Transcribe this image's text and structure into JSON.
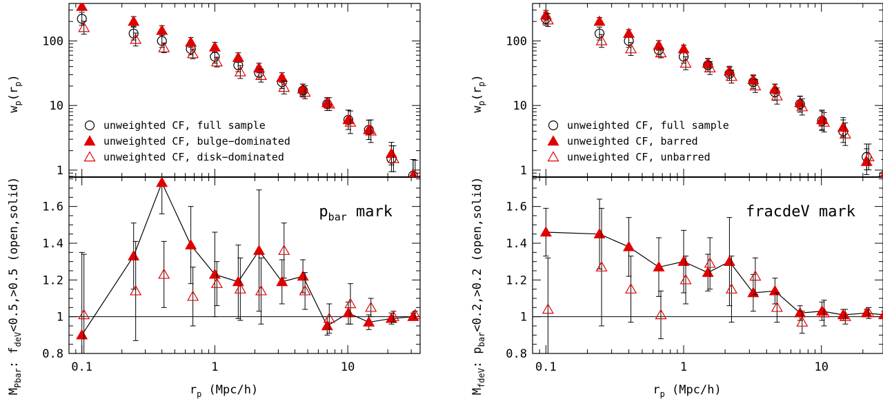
{
  "chart_data": [
    {
      "type": "scatter",
      "id": "left",
      "xscale": "log",
      "xlim": [
        0.08,
        35
      ],
      "x_ticks": [
        0.1,
        1,
        10
      ],
      "x_tick_labels": [
        "0.1",
        "1",
        "10"
      ],
      "xlabel": {
        "main": "r",
        "sub": "p",
        "rest": " (Mpc/h)"
      },
      "top": {
        "yscale": "log",
        "ylim": [
          0.78,
          380
        ],
        "y_ticks": [
          1,
          10,
          100
        ],
        "y_tick_labels": [
          "1",
          "10",
          "100"
        ],
        "ylabel": {
          "main": "w",
          "sub": "p",
          "rest": "(r",
          "sub2": "p",
          "end": ")"
        },
        "legend": [
          {
            "label": "unweighted CF, full sample",
            "marker": "circle"
          },
          {
            "label": "unweighted CF, bulge−dominated",
            "marker": "filled-triangle"
          },
          {
            "label": "unweighted CF, disk−dominated",
            "marker": "open-triangle"
          }
        ],
        "series": [
          {
            "marker": "circle",
            "x": [
              0.1,
              0.245,
              0.4,
              0.66,
              1.0,
              1.5,
              2.15,
              3.2,
              4.6,
              7.0,
              10.1,
              14.4,
              21.3,
              31.0
            ],
            "y": [
              220,
              130,
              100,
              75,
              57,
              42,
              32,
              23,
              17,
              10.5,
              6.0,
              4.2,
              1.5,
              0.82
            ],
            "err": [
              0.2,
              0.2,
              0.2,
              0.18,
              0.2,
              0.2,
              0.2,
              0.2,
              0.2,
              0.2,
              0.3,
              0.3,
              0.4,
              0.5
            ]
          },
          {
            "marker": "filled-triangle",
            "x": [
              0.1,
              0.245,
              0.4,
              0.66,
              1.0,
              1.5,
              2.15,
              3.2,
              4.6,
              7.0,
              10.1,
              14.4,
              21.3,
              31.0
            ],
            "y": [
              340,
              200,
              145,
              95,
              80,
              55,
              38,
              27,
              18,
              11,
              6.0,
              4.2,
              1.8,
              0.82
            ],
            "err": [
              0.1,
              0.15,
              0.15,
              0.15,
              0.15,
              0.15,
              0.15,
              0.15,
              0.15,
              0.15,
              0.3,
              0.3,
              0.35,
              0.5
            ]
          },
          {
            "marker": "open-triangle",
            "x": [
              0.1,
              0.245,
              0.4,
              0.66,
              1.0,
              1.5,
              2.15,
              3.2,
              4.6,
              7.0,
              10.1,
              14.4,
              21.3,
              31.0
            ],
            "y": [
              160,
              105,
              78,
              63,
              47,
              33,
              29,
              19,
              16,
              10.5,
              5.5,
              4.0,
              1.5,
              0.8
            ],
            "err": [
              0.2,
              0.2,
              0.15,
              0.15,
              0.15,
              0.2,
              0.2,
              0.2,
              0.2,
              0.2,
              0.35,
              0.35,
              0.4,
              0.5
            ]
          }
        ]
      },
      "bottom": {
        "yscale": "linear",
        "ylim": [
          0.8,
          1.76
        ],
        "y_ticks": [
          0.8,
          1,
          1.2,
          1.4,
          1.6
        ],
        "y_tick_labels": [
          "0.8",
          "1",
          "1.2",
          "1.4",
          "1.6"
        ],
        "ylabel_text": "M",
        "ylabel_sub": "Pbar",
        "ylabel_mid": ": f",
        "ylabel_sub2": "deV",
        "ylabel_end": "<0.5,>0.5 (open,solid)",
        "mark_main": "p",
        "mark_sub": "bar",
        "mark_rest": " mark",
        "series": [
          {
            "marker": "filled-triangle",
            "connected": true,
            "x": [
              0.1,
              0.245,
              0.4,
              0.66,
              1.0,
              1.5,
              2.15,
              3.2,
              4.6,
              7.0,
              10.1,
              14.4,
              21.3,
              31.0
            ],
            "y": [
              0.9,
              1.33,
              1.73,
              1.39,
              1.23,
              1.19,
              1.36,
              1.19,
              1.22,
              0.95,
              1.02,
              0.97,
              0.99,
              1.0
            ],
            "err": [
              0.45,
              0.18,
              0.17,
              0.21,
              0.23,
              0.2,
              0.33,
              0.12,
              0.09,
              0.05,
              0.06,
              0.04,
              0.03,
              0.02
            ]
          },
          {
            "marker": "open-triangle",
            "connected": false,
            "x": [
              0.1,
              0.245,
              0.4,
              0.66,
              1.0,
              1.5,
              2.15,
              3.2,
              4.6,
              7.0,
              10.1,
              14.4,
              21.3,
              31.0
            ],
            "y": [
              1.01,
              1.14,
              1.23,
              1.11,
              1.18,
              1.15,
              1.14,
              1.36,
              1.14,
              0.99,
              1.07,
              1.05,
              1.0,
              1.01
            ],
            "err": [
              0.33,
              0.27,
              0.18,
              0.16,
              0.12,
              0.17,
              0.18,
              0.15,
              0.1,
              0.08,
              0.11,
              0.05,
              0.03,
              0.02
            ]
          }
        ]
      }
    },
    {
      "type": "scatter",
      "id": "right",
      "xscale": "log",
      "xlim": [
        0.08,
        28
      ],
      "x_ticks": [
        0.1,
        1,
        10
      ],
      "x_tick_labels": [
        "0.1",
        "1",
        "10"
      ],
      "xlabel": {
        "main": "r",
        "sub": "p",
        "rest": " (Mpc/h)"
      },
      "top": {
        "yscale": "log",
        "ylim": [
          0.78,
          380
        ],
        "y_ticks": [
          1,
          10,
          100
        ],
        "y_tick_labels": [
          "1",
          "10",
          "100"
        ],
        "ylabel": {
          "main": "w",
          "sub": "p",
          "rest": "(r",
          "sub2": "p",
          "end": ")"
        },
        "legend": [
          {
            "label": "unweighted CF, full sample",
            "marker": "circle"
          },
          {
            "label": "unweighted CF, barred",
            "marker": "filled-triangle"
          },
          {
            "label": "unweighted CF, unbarred",
            "marker": "open-triangle"
          }
        ],
        "series": [
          {
            "marker": "circle",
            "x": [
              0.1,
              0.245,
              0.4,
              0.66,
              1.0,
              1.5,
              2.15,
              3.2,
              4.6,
              7.0,
              10.1,
              14.4,
              21.3,
              28.5
            ],
            "y": [
              220,
              130,
              100,
              72,
              57,
              42,
              31,
              23,
              16,
              10.5,
              5.8,
              4.0,
              1.6,
              0.82
            ],
            "err": [
              0.2,
              0.2,
              0.2,
              0.2,
              0.2,
              0.2,
              0.2,
              0.2,
              0.25,
              0.25,
              0.3,
              0.35,
              0.4,
              0.5
            ]
          },
          {
            "marker": "filled-triangle",
            "x": [
              0.1,
              0.245,
              0.4,
              0.66,
              1.0,
              1.5,
              2.15,
              3.2,
              4.6,
              7.0,
              10.1,
              14.4,
              21.3,
              28.5
            ],
            "y": [
              250,
              200,
              130,
              85,
              75,
              45,
              34,
              25,
              18,
              11,
              6.0,
              4.6,
              1.35,
              0.82
            ],
            "err": [
              0.15,
              0.12,
              0.12,
              0.15,
              0.12,
              0.15,
              0.15,
              0.15,
              0.15,
              0.2,
              0.3,
              0.3,
              0.4,
              0.5
            ]
          },
          {
            "marker": "open-triangle",
            "x": [
              0.1,
              0.245,
              0.4,
              0.66,
              1.0,
              1.5,
              2.15,
              3.2,
              4.6,
              7.0,
              10.1,
              14.4,
              21.3,
              28.5
            ],
            "y": [
              210,
              100,
              75,
              65,
              45,
              38,
              28,
              20,
              14,
              9.5,
              5.5,
              3.6,
              1.6,
              0.82
            ],
            "err": [
              0.2,
              0.2,
              0.2,
              0.15,
              0.2,
              0.2,
              0.2,
              0.2,
              0.25,
              0.25,
              0.3,
              0.35,
              0.4,
              0.5
            ]
          }
        ]
      },
      "bottom": {
        "yscale": "linear",
        "ylim": [
          0.8,
          1.76
        ],
        "y_ticks": [
          0.8,
          1,
          1.2,
          1.4,
          1.6
        ],
        "y_tick_labels": [
          "0.8",
          "1",
          "1.2",
          "1.4",
          "1.6"
        ],
        "ylabel_text": "M",
        "ylabel_sub": "fdeV",
        "ylabel_mid": ": p",
        "ylabel_sub2": "bar",
        "ylabel_end": "<0.2,>0.2 (open,solid)",
        "mark_main": "fracdeV",
        "mark_sub": "",
        "mark_rest": " mark",
        "series": [
          {
            "marker": "filled-triangle",
            "connected": true,
            "x": [
              0.1,
              0.245,
              0.4,
              0.66,
              1.0,
              1.5,
              2.15,
              3.2,
              4.6,
              7.0,
              10.1,
              14.4,
              21.3,
              28.5
            ],
            "y": [
              1.46,
              1.45,
              1.38,
              1.27,
              1.3,
              1.24,
              1.3,
              1.13,
              1.14,
              1.02,
              1.03,
              1.01,
              1.02,
              1.01
            ],
            "err": [
              0.13,
              0.19,
              0.16,
              0.16,
              0.17,
              0.1,
              0.24,
              0.1,
              0.07,
              0.04,
              0.05,
              0.03,
              0.02,
              0.02
            ]
          },
          {
            "marker": "open-triangle",
            "connected": false,
            "x": [
              0.1,
              0.245,
              0.4,
              0.66,
              1.0,
              1.5,
              2.15,
              3.2,
              4.6,
              7.0,
              10.1,
              14.4,
              21.3,
              28.5
            ],
            "y": [
              1.04,
              1.27,
              1.15,
              1.01,
              1.2,
              1.29,
              1.15,
              1.22,
              1.05,
              0.97,
              1.02,
              1.0,
              1.02,
              1.02
            ],
            "err": [
              0.28,
              0.32,
              0.18,
              0.13,
              0.13,
              0.14,
              0.18,
              0.1,
              0.08,
              0.06,
              0.07,
              0.04,
              0.03,
              0.03
            ]
          }
        ]
      }
    }
  ],
  "colors": {
    "marker_red": "#e00000",
    "axis": "#000000"
  }
}
